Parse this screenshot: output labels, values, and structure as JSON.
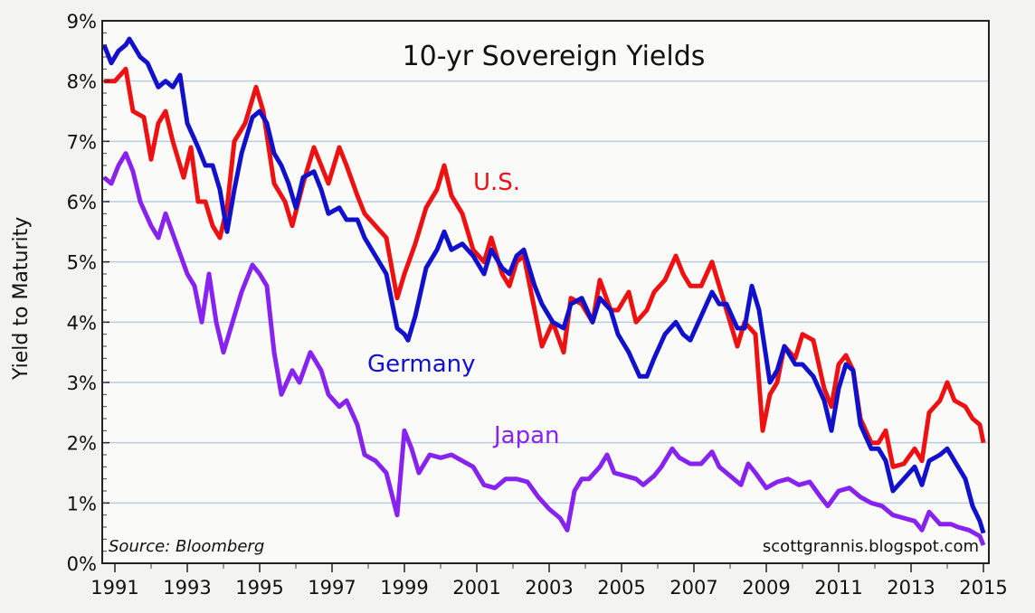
{
  "chart_data": {
    "type": "line",
    "title": "10-yr Sovereign Yields",
    "xlabel": "",
    "ylabel": "Yield to Maturity",
    "xlim": [
      1990.65,
      2015.15
    ],
    "ylim": [
      0,
      9
    ],
    "x_ticks": [
      "1991",
      "1993",
      "1995",
      "1997",
      "1999",
      "2001",
      "2003",
      "2005",
      "2007",
      "2009",
      "2011",
      "2013",
      "2015"
    ],
    "y_ticks": [
      "0%",
      "1%",
      "2%",
      "3%",
      "4%",
      "5%",
      "6%",
      "7%",
      "8%",
      "9%"
    ],
    "grid": true,
    "source": "Source: Bloomberg",
    "watermark": "scottgrannis.blogspot.com",
    "series": [
      {
        "name": "U.S.",
        "color": "#ee1111",
        "points": [
          [
            1990.7,
            8.0
          ],
          [
            1991.0,
            8.0
          ],
          [
            1991.3,
            8.2
          ],
          [
            1991.5,
            7.5
          ],
          [
            1991.8,
            7.4
          ],
          [
            1992.0,
            6.7
          ],
          [
            1992.2,
            7.3
          ],
          [
            1992.4,
            7.5
          ],
          [
            1992.6,
            7.0
          ],
          [
            1992.9,
            6.4
          ],
          [
            1993.1,
            6.9
          ],
          [
            1993.3,
            6.0
          ],
          [
            1993.5,
            6.0
          ],
          [
            1993.7,
            5.6
          ],
          [
            1993.9,
            5.4
          ],
          [
            1994.1,
            5.9
          ],
          [
            1994.3,
            7.0
          ],
          [
            1994.6,
            7.3
          ],
          [
            1994.9,
            7.9
          ],
          [
            1995.1,
            7.5
          ],
          [
            1995.4,
            6.3
          ],
          [
            1995.7,
            6.0
          ],
          [
            1995.9,
            5.6
          ],
          [
            1996.2,
            6.3
          ],
          [
            1996.5,
            6.9
          ],
          [
            1996.7,
            6.6
          ],
          [
            1996.9,
            6.3
          ],
          [
            1997.2,
            6.9
          ],
          [
            1997.4,
            6.6
          ],
          [
            1997.7,
            6.1
          ],
          [
            1997.9,
            5.8
          ],
          [
            1998.2,
            5.6
          ],
          [
            1998.5,
            5.4
          ],
          [
            1998.8,
            4.4
          ],
          [
            1999.0,
            4.8
          ],
          [
            1999.3,
            5.3
          ],
          [
            1999.6,
            5.9
          ],
          [
            1999.9,
            6.2
          ],
          [
            2000.1,
            6.6
          ],
          [
            2000.3,
            6.1
          ],
          [
            2000.6,
            5.8
          ],
          [
            2000.9,
            5.2
          ],
          [
            2001.2,
            5.0
          ],
          [
            2001.4,
            5.4
          ],
          [
            2001.7,
            4.8
          ],
          [
            2001.9,
            4.6
          ],
          [
            2002.1,
            5.0
          ],
          [
            2002.3,
            5.1
          ],
          [
            2002.6,
            4.2
          ],
          [
            2002.8,
            3.6
          ],
          [
            2003.1,
            4.0
          ],
          [
            2003.4,
            3.5
          ],
          [
            2003.6,
            4.4
          ],
          [
            2003.9,
            4.3
          ],
          [
            2004.2,
            4.0
          ],
          [
            2004.4,
            4.7
          ],
          [
            2004.7,
            4.2
          ],
          [
            2004.9,
            4.2
          ],
          [
            2005.2,
            4.5
          ],
          [
            2005.4,
            4.0
          ],
          [
            2005.7,
            4.2
          ],
          [
            2005.9,
            4.5
          ],
          [
            2006.2,
            4.7
          ],
          [
            2006.5,
            5.1
          ],
          [
            2006.7,
            4.8
          ],
          [
            2006.9,
            4.6
          ],
          [
            2007.2,
            4.6
          ],
          [
            2007.5,
            5.0
          ],
          [
            2007.7,
            4.6
          ],
          [
            2007.9,
            4.2
          ],
          [
            2008.2,
            3.6
          ],
          [
            2008.4,
            4.0
          ],
          [
            2008.7,
            3.8
          ],
          [
            2008.9,
            2.2
          ],
          [
            2009.1,
            2.8
          ],
          [
            2009.3,
            3.0
          ],
          [
            2009.5,
            3.6
          ],
          [
            2009.8,
            3.4
          ],
          [
            2010.0,
            3.8
          ],
          [
            2010.3,
            3.7
          ],
          [
            2010.6,
            2.9
          ],
          [
            2010.8,
            2.6
          ],
          [
            2011.0,
            3.3
          ],
          [
            2011.2,
            3.45
          ],
          [
            2011.4,
            3.2
          ],
          [
            2011.6,
            2.4
          ],
          [
            2011.9,
            2.0
          ],
          [
            2012.1,
            2.0
          ],
          [
            2012.3,
            2.2
          ],
          [
            2012.5,
            1.6
          ],
          [
            2012.8,
            1.65
          ],
          [
            2013.1,
            1.9
          ],
          [
            2013.3,
            1.7
          ],
          [
            2013.5,
            2.5
          ],
          [
            2013.8,
            2.7
          ],
          [
            2014.0,
            3.0
          ],
          [
            2014.2,
            2.7
          ],
          [
            2014.5,
            2.6
          ],
          [
            2014.7,
            2.4
          ],
          [
            2014.9,
            2.3
          ],
          [
            2015.0,
            2.0
          ]
        ]
      },
      {
        "name": "Germany",
        "color": "#1111cc",
        "points": [
          [
            1990.7,
            8.6
          ],
          [
            1990.9,
            8.3
          ],
          [
            1991.1,
            8.5
          ],
          [
            1991.3,
            8.6
          ],
          [
            1991.4,
            8.7
          ],
          [
            1991.7,
            8.4
          ],
          [
            1991.9,
            8.3
          ],
          [
            1992.2,
            7.9
          ],
          [
            1992.4,
            8.0
          ],
          [
            1992.6,
            7.9
          ],
          [
            1992.8,
            8.1
          ],
          [
            1993.0,
            7.3
          ],
          [
            1993.3,
            6.9
          ],
          [
            1993.5,
            6.6
          ],
          [
            1993.7,
            6.6
          ],
          [
            1993.9,
            6.2
          ],
          [
            1994.1,
            5.5
          ],
          [
            1994.3,
            6.2
          ],
          [
            1994.5,
            6.8
          ],
          [
            1994.8,
            7.4
          ],
          [
            1995.0,
            7.5
          ],
          [
            1995.2,
            7.3
          ],
          [
            1995.4,
            6.8
          ],
          [
            1995.6,
            6.6
          ],
          [
            1995.8,
            6.3
          ],
          [
            1996.0,
            5.9
          ],
          [
            1996.2,
            6.4
          ],
          [
            1996.5,
            6.5
          ],
          [
            1996.7,
            6.2
          ],
          [
            1996.9,
            5.8
          ],
          [
            1997.2,
            5.9
          ],
          [
            1997.4,
            5.7
          ],
          [
            1997.7,
            5.7
          ],
          [
            1997.9,
            5.4
          ],
          [
            1998.2,
            5.1
          ],
          [
            1998.5,
            4.8
          ],
          [
            1998.8,
            3.9
          ],
          [
            1999.0,
            3.8
          ],
          [
            1999.1,
            3.7
          ],
          [
            1999.3,
            4.1
          ],
          [
            1999.6,
            4.9
          ],
          [
            1999.9,
            5.2
          ],
          [
            2000.1,
            5.5
          ],
          [
            2000.3,
            5.2
          ],
          [
            2000.6,
            5.3
          ],
          [
            2000.9,
            5.1
          ],
          [
            2001.2,
            4.8
          ],
          [
            2001.4,
            5.2
          ],
          [
            2001.7,
            4.9
          ],
          [
            2001.9,
            4.8
          ],
          [
            2002.1,
            5.1
          ],
          [
            2002.3,
            5.2
          ],
          [
            2002.6,
            4.6
          ],
          [
            2002.8,
            4.3
          ],
          [
            2003.1,
            4.0
          ],
          [
            2003.4,
            3.9
          ],
          [
            2003.6,
            4.3
          ],
          [
            2003.9,
            4.4
          ],
          [
            2004.2,
            4.0
          ],
          [
            2004.4,
            4.4
          ],
          [
            2004.7,
            4.2
          ],
          [
            2004.9,
            3.8
          ],
          [
            2005.2,
            3.5
          ],
          [
            2005.5,
            3.1
          ],
          [
            2005.7,
            3.1
          ],
          [
            2005.9,
            3.4
          ],
          [
            2006.2,
            3.8
          ],
          [
            2006.5,
            4.0
          ],
          [
            2006.7,
            3.8
          ],
          [
            2006.9,
            3.7
          ],
          [
            2007.2,
            4.1
          ],
          [
            2007.5,
            4.5
          ],
          [
            2007.7,
            4.3
          ],
          [
            2007.9,
            4.3
          ],
          [
            2008.2,
            3.9
          ],
          [
            2008.4,
            3.9
          ],
          [
            2008.6,
            4.6
          ],
          [
            2008.8,
            4.2
          ],
          [
            2008.9,
            3.8
          ],
          [
            2009.1,
            3.0
          ],
          [
            2009.3,
            3.2
          ],
          [
            2009.5,
            3.6
          ],
          [
            2009.8,
            3.3
          ],
          [
            2010.0,
            3.3
          ],
          [
            2010.3,
            3.1
          ],
          [
            2010.6,
            2.7
          ],
          [
            2010.8,
            2.2
          ],
          [
            2011.0,
            2.9
          ],
          [
            2011.2,
            3.3
          ],
          [
            2011.4,
            3.2
          ],
          [
            2011.6,
            2.3
          ],
          [
            2011.9,
            1.9
          ],
          [
            2012.1,
            1.9
          ],
          [
            2012.3,
            1.7
          ],
          [
            2012.5,
            1.2
          ],
          [
            2012.8,
            1.4
          ],
          [
            2013.1,
            1.6
          ],
          [
            2013.3,
            1.3
          ],
          [
            2013.5,
            1.7
          ],
          [
            2013.8,
            1.8
          ],
          [
            2014.0,
            1.9
          ],
          [
            2014.2,
            1.7
          ],
          [
            2014.5,
            1.4
          ],
          [
            2014.7,
            0.95
          ],
          [
            2014.9,
            0.7
          ],
          [
            2015.0,
            0.5
          ]
        ]
      },
      {
        "name": "Japan",
        "color": "#8822ee",
        "points": [
          [
            1990.7,
            6.4
          ],
          [
            1990.9,
            6.3
          ],
          [
            1991.1,
            6.6
          ],
          [
            1991.3,
            6.8
          ],
          [
            1991.5,
            6.5
          ],
          [
            1991.7,
            6.0
          ],
          [
            1992.0,
            5.6
          ],
          [
            1992.2,
            5.4
          ],
          [
            1992.4,
            5.8
          ],
          [
            1992.7,
            5.3
          ],
          [
            1993.0,
            4.8
          ],
          [
            1993.2,
            4.6
          ],
          [
            1993.4,
            4.0
          ],
          [
            1993.6,
            4.8
          ],
          [
            1993.8,
            4.0
          ],
          [
            1994.0,
            3.5
          ],
          [
            1994.2,
            3.9
          ],
          [
            1994.5,
            4.5
          ],
          [
            1994.8,
            4.95
          ],
          [
            1995.0,
            4.8
          ],
          [
            1995.2,
            4.6
          ],
          [
            1995.4,
            3.5
          ],
          [
            1995.6,
            2.8
          ],
          [
            1995.9,
            3.2
          ],
          [
            1996.1,
            3.0
          ],
          [
            1996.4,
            3.5
          ],
          [
            1996.7,
            3.2
          ],
          [
            1996.9,
            2.8
          ],
          [
            1997.2,
            2.6
          ],
          [
            1997.4,
            2.7
          ],
          [
            1997.7,
            2.3
          ],
          [
            1997.9,
            1.8
          ],
          [
            1998.2,
            1.7
          ],
          [
            1998.5,
            1.5
          ],
          [
            1998.8,
            0.8
          ],
          [
            1999.0,
            2.2
          ],
          [
            1999.2,
            1.9
          ],
          [
            1999.4,
            1.5
          ],
          [
            1999.7,
            1.8
          ],
          [
            2000.0,
            1.75
          ],
          [
            2000.3,
            1.8
          ],
          [
            2000.6,
            1.7
          ],
          [
            2000.9,
            1.6
          ],
          [
            2001.2,
            1.3
          ],
          [
            2001.5,
            1.25
          ],
          [
            2001.8,
            1.4
          ],
          [
            2002.1,
            1.4
          ],
          [
            2002.4,
            1.35
          ],
          [
            2002.7,
            1.1
          ],
          [
            2003.0,
            0.9
          ],
          [
            2003.3,
            0.75
          ],
          [
            2003.5,
            0.55
          ],
          [
            2003.7,
            1.2
          ],
          [
            2003.9,
            1.4
          ],
          [
            2004.1,
            1.4
          ],
          [
            2004.4,
            1.6
          ],
          [
            2004.6,
            1.8
          ],
          [
            2004.8,
            1.5
          ],
          [
            2005.1,
            1.45
          ],
          [
            2005.4,
            1.4
          ],
          [
            2005.6,
            1.3
          ],
          [
            2005.9,
            1.45
          ],
          [
            2006.1,
            1.6
          ],
          [
            2006.4,
            1.9
          ],
          [
            2006.6,
            1.75
          ],
          [
            2006.9,
            1.65
          ],
          [
            2007.2,
            1.65
          ],
          [
            2007.5,
            1.85
          ],
          [
            2007.7,
            1.6
          ],
          [
            2008.0,
            1.45
          ],
          [
            2008.3,
            1.3
          ],
          [
            2008.5,
            1.65
          ],
          [
            2008.7,
            1.5
          ],
          [
            2009.0,
            1.25
          ],
          [
            2009.3,
            1.35
          ],
          [
            2009.6,
            1.4
          ],
          [
            2009.9,
            1.3
          ],
          [
            2010.2,
            1.35
          ],
          [
            2010.5,
            1.1
          ],
          [
            2010.7,
            0.95
          ],
          [
            2011.0,
            1.2
          ],
          [
            2011.3,
            1.25
          ],
          [
            2011.6,
            1.1
          ],
          [
            2011.9,
            1.0
          ],
          [
            2012.2,
            0.95
          ],
          [
            2012.5,
            0.8
          ],
          [
            2012.8,
            0.75
          ],
          [
            2013.1,
            0.7
          ],
          [
            2013.3,
            0.55
          ],
          [
            2013.5,
            0.85
          ],
          [
            2013.8,
            0.65
          ],
          [
            2014.1,
            0.65
          ],
          [
            2014.3,
            0.6
          ],
          [
            2014.6,
            0.55
          ],
          [
            2014.9,
            0.45
          ],
          [
            2015.0,
            0.3
          ]
        ]
      }
    ]
  }
}
